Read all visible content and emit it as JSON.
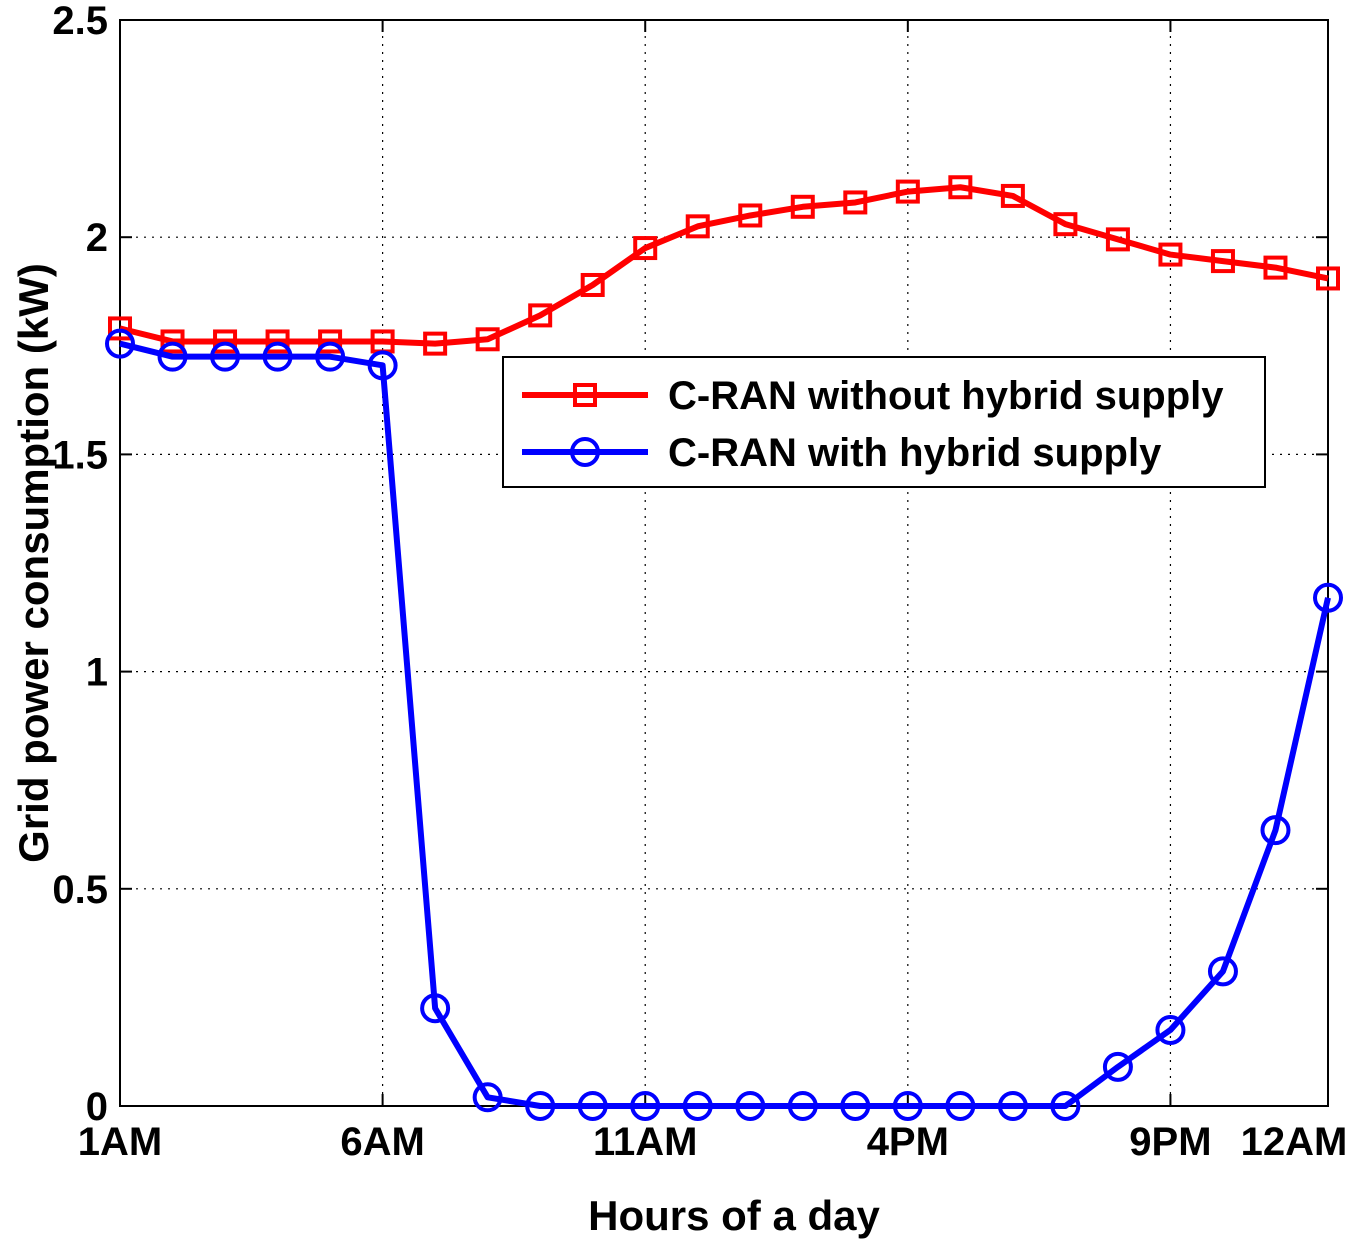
{
  "chart_data": {
    "type": "line",
    "title": "",
    "xlabel": "Hours of a day",
    "ylabel": "Grid power consumption (kW)",
    "xlim": [
      1,
      24
    ],
    "ylim": [
      0,
      2.5
    ],
    "grid": true,
    "legend_position": "top-right",
    "x": [
      1,
      2,
      3,
      4,
      5,
      6,
      7,
      8,
      9,
      10,
      11,
      12,
      13,
      14,
      15,
      16,
      17,
      18,
      19,
      20,
      21,
      22,
      23,
      24
    ],
    "xticks": [
      {
        "value": 1,
        "label": "1AM"
      },
      {
        "value": 6,
        "label": "6AM"
      },
      {
        "value": 11,
        "label": "11AM"
      },
      {
        "value": 16,
        "label": "4PM"
      },
      {
        "value": 21,
        "label": "9PM"
      },
      {
        "value": 24,
        "label": "12AM"
      }
    ],
    "yticks": [
      {
        "value": 0,
        "label": "0"
      },
      {
        "value": 0.5,
        "label": "0.5"
      },
      {
        "value": 1,
        "label": "1"
      },
      {
        "value": 1.5,
        "label": "1.5"
      },
      {
        "value": 2,
        "label": "2"
      },
      {
        "value": 2.5,
        "label": "2.5"
      }
    ],
    "series": [
      {
        "name": "C-RAN without hybrid supply",
        "color": "#ff0000",
        "marker": "square",
        "values": [
          1.79,
          1.76,
          1.76,
          1.76,
          1.76,
          1.76,
          1.755,
          1.765,
          1.82,
          1.89,
          1.975,
          2.025,
          2.05,
          2.07,
          2.08,
          2.105,
          2.115,
          2.095,
          2.03,
          1.995,
          1.96,
          1.945,
          1.93,
          1.905
        ]
      },
      {
        "name": "C-RAN with hybrid supply",
        "color": "#0000ff",
        "marker": "circle",
        "values": [
          1.755,
          1.725,
          1.725,
          1.725,
          1.725,
          1.705,
          0.225,
          0.02,
          0.0,
          0.0,
          0.0,
          0.0,
          0.0,
          0.0,
          0.0,
          0.0,
          0.0,
          0.0,
          0.0,
          0.09,
          0.175,
          0.31,
          0.635,
          1.17
        ]
      }
    ]
  }
}
